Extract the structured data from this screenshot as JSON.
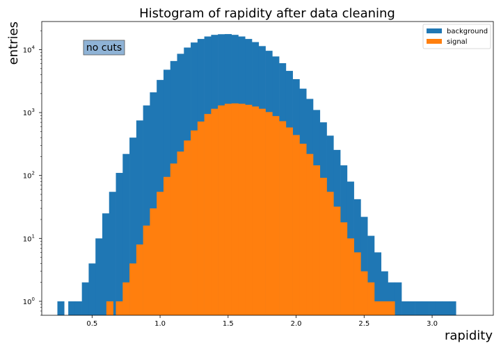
{
  "chart_data": {
    "type": "bar",
    "title": "Histogram of rapidity after data cleaning",
    "xlabel": "rapidity",
    "ylabel": "entries",
    "xlim": [
      0.13,
      3.45
    ],
    "ylim": [
      0.6,
      28000
    ],
    "yscale": "log",
    "x_ticks": [
      "0.5",
      "1.0",
      "1.5",
      "2.0",
      "2.5",
      "3.0"
    ],
    "x_tick_values": [
      0.5,
      1.0,
      1.5,
      2.0,
      2.5,
      3.0
    ],
    "y_tick_exponents": [
      0,
      1,
      2,
      3,
      4
    ],
    "y_tick_base": "10",
    "legend_position": "top-right",
    "annotation": "no cuts",
    "series": [
      {
        "name": "background",
        "color": "#1f77b4",
        "x": [
          0.27,
          0.35,
          0.4,
          0.45,
          0.5,
          0.55,
          0.6,
          0.65,
          0.7,
          0.75,
          0.8,
          0.85,
          0.9,
          0.95,
          1.0,
          1.05,
          1.1,
          1.15,
          1.2,
          1.25,
          1.3,
          1.35,
          1.4,
          1.45,
          1.5,
          1.55,
          1.6,
          1.65,
          1.7,
          1.75,
          1.8,
          1.85,
          1.9,
          1.95,
          2.0,
          2.05,
          2.1,
          2.15,
          2.2,
          2.25,
          2.3,
          2.35,
          2.4,
          2.45,
          2.5,
          2.55,
          2.6,
          2.65,
          2.7,
          2.75,
          2.8,
          2.85,
          2.9,
          2.95,
          3.0,
          3.05,
          3.1,
          3.15
        ],
        "values": [
          1,
          1,
          1,
          2,
          4,
          10,
          25,
          55,
          110,
          220,
          400,
          750,
          1300,
          2100,
          3300,
          4800,
          6600,
          8600,
          10800,
          13000,
          14800,
          16200,
          17200,
          17600,
          17700,
          17200,
          16200,
          14800,
          13200,
          11400,
          9600,
          7800,
          6100,
          4600,
          3400,
          2400,
          1650,
          1100,
          700,
          430,
          255,
          145,
          80,
          42,
          22,
          11,
          6,
          3,
          2,
          2,
          1,
          1,
          1,
          1,
          1,
          1,
          1,
          1
        ]
      },
      {
        "name": "signal",
        "color": "#ff7f0e",
        "x": [
          0.63,
          0.7,
          0.75,
          0.8,
          0.85,
          0.9,
          0.95,
          1.0,
          1.05,
          1.1,
          1.15,
          1.2,
          1.25,
          1.3,
          1.35,
          1.4,
          1.45,
          1.5,
          1.55,
          1.6,
          1.65,
          1.7,
          1.75,
          1.8,
          1.85,
          1.9,
          1.95,
          2.0,
          2.05,
          2.1,
          2.15,
          2.2,
          2.25,
          2.3,
          2.35,
          2.4,
          2.45,
          2.5,
          2.55,
          2.6,
          2.65,
          2.7
        ],
        "values": [
          1,
          1,
          2,
          4,
          8,
          16,
          30,
          55,
          95,
          155,
          240,
          360,
          520,
          720,
          950,
          1150,
          1300,
          1380,
          1400,
          1380,
          1330,
          1250,
          1150,
          1020,
          880,
          730,
          580,
          440,
          320,
          220,
          145,
          92,
          55,
          32,
          18,
          10,
          6,
          3,
          2,
          1,
          1,
          1
        ]
      }
    ]
  }
}
